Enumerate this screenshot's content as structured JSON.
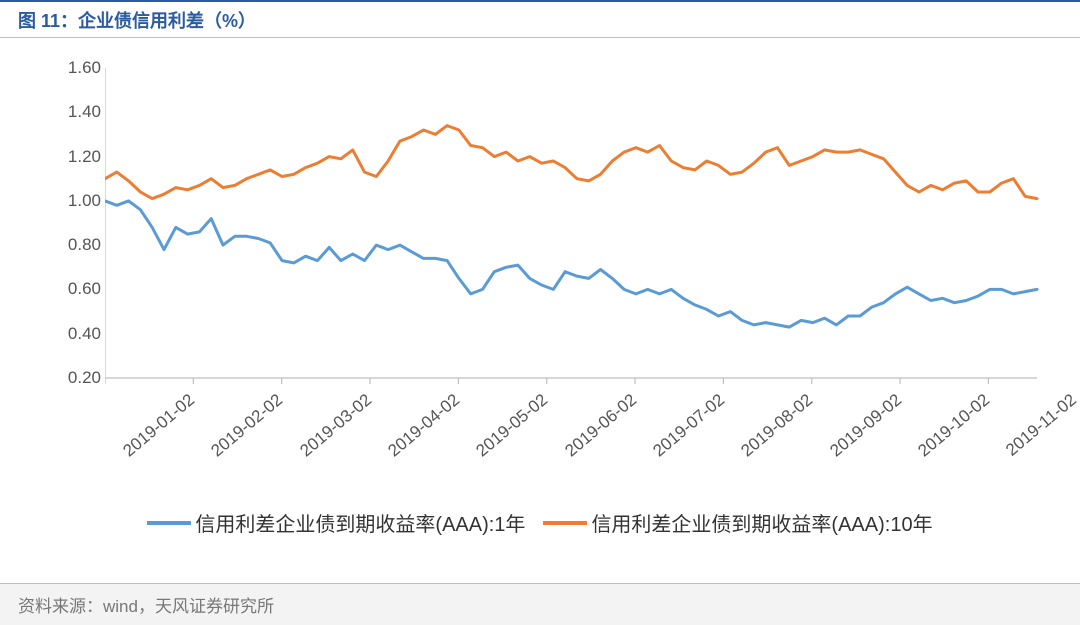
{
  "title": "图 11：企业债信用利差（%）",
  "source": "资料来源：wind，天风证券研究所",
  "chart": {
    "type": "line",
    "background_color": "#ffffff",
    "title_color": "#2a5aa0",
    "title_fontsize": 18,
    "axis_label_color": "#555555",
    "axis_label_fontsize": 17,
    "axis_line_color": "#bfbfbf",
    "ylim": [
      0.2,
      1.6
    ],
    "ytick_step": 0.2,
    "yticks": [
      "0.20",
      "0.40",
      "0.60",
      "0.80",
      "1.00",
      "1.20",
      "1.40",
      "1.60"
    ],
    "x_categories": [
      "2019-01-02",
      "2019-02-02",
      "2019-03-02",
      "2019-04-02",
      "2019-05-02",
      "2019-06-02",
      "2019-07-02",
      "2019-08-02",
      "2019-09-02",
      "2019-10-02",
      "2019-11-02"
    ],
    "x_label_rotation_deg": -40,
    "line_width": 3,
    "legend_fontsize": 20,
    "legend_swatch_width": 44,
    "legend_swatch_height": 4,
    "series": [
      {
        "name": "信用利差企业债到期收益率(AAA):1年",
        "color": "#5b9bd5",
        "data": [
          1.0,
          0.98,
          1.0,
          0.96,
          0.88,
          0.78,
          0.88,
          0.85,
          0.86,
          0.92,
          0.8,
          0.84,
          0.84,
          0.83,
          0.81,
          0.73,
          0.72,
          0.75,
          0.73,
          0.79,
          0.73,
          0.76,
          0.73,
          0.8,
          0.78,
          0.8,
          0.77,
          0.74,
          0.74,
          0.73,
          0.65,
          0.58,
          0.6,
          0.68,
          0.7,
          0.71,
          0.65,
          0.62,
          0.6,
          0.68,
          0.66,
          0.65,
          0.69,
          0.65,
          0.6,
          0.58,
          0.6,
          0.58,
          0.6,
          0.56,
          0.53,
          0.51,
          0.48,
          0.5,
          0.46,
          0.44,
          0.45,
          0.44,
          0.43,
          0.46,
          0.45,
          0.47,
          0.44,
          0.48,
          0.48,
          0.52,
          0.54,
          0.58,
          0.61,
          0.58,
          0.55,
          0.56,
          0.54,
          0.55,
          0.57,
          0.6,
          0.6,
          0.58,
          0.59,
          0.6
        ]
      },
      {
        "name": "信用利差企业债到期收益率(AAA):10年",
        "color": "#ed7d31",
        "data": [
          1.1,
          1.13,
          1.09,
          1.04,
          1.01,
          1.03,
          1.06,
          1.05,
          1.07,
          1.1,
          1.06,
          1.07,
          1.1,
          1.12,
          1.14,
          1.11,
          1.12,
          1.15,
          1.17,
          1.2,
          1.19,
          1.23,
          1.13,
          1.11,
          1.18,
          1.27,
          1.29,
          1.32,
          1.3,
          1.34,
          1.32,
          1.25,
          1.24,
          1.2,
          1.22,
          1.18,
          1.2,
          1.17,
          1.18,
          1.15,
          1.1,
          1.09,
          1.12,
          1.18,
          1.22,
          1.24,
          1.22,
          1.25,
          1.18,
          1.15,
          1.14,
          1.18,
          1.16,
          1.12,
          1.13,
          1.17,
          1.22,
          1.24,
          1.16,
          1.18,
          1.2,
          1.23,
          1.22,
          1.22,
          1.23,
          1.21,
          1.19,
          1.13,
          1.07,
          1.04,
          1.07,
          1.05,
          1.08,
          1.09,
          1.04,
          1.04,
          1.08,
          1.1,
          1.02,
          1.01
        ]
      }
    ]
  }
}
